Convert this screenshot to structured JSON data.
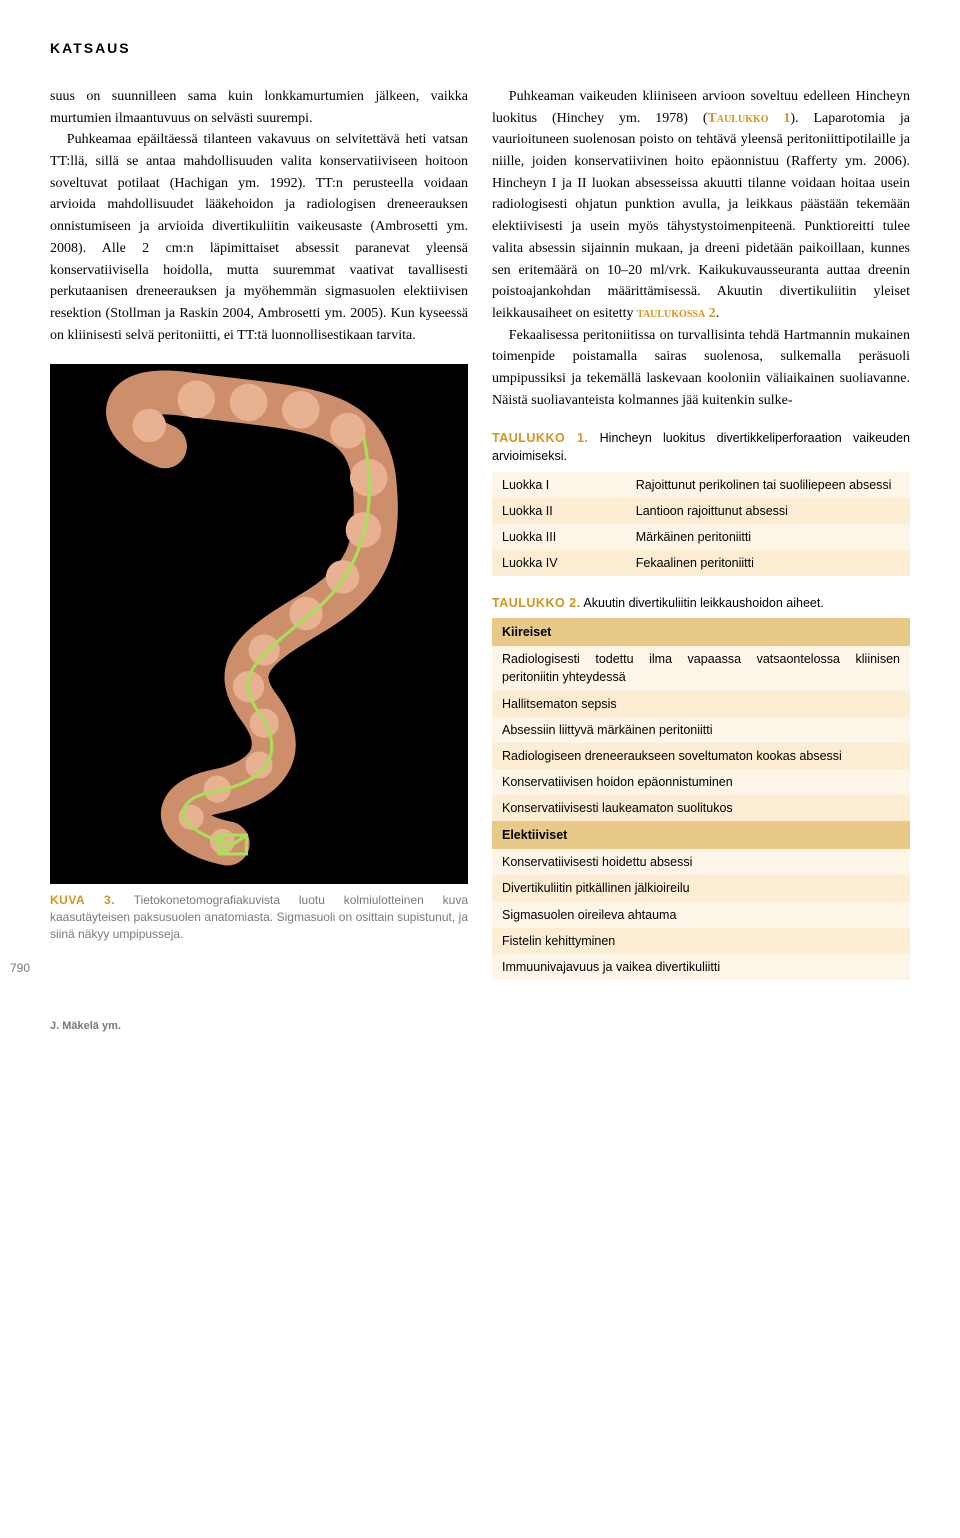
{
  "header": "KATSAUS",
  "left_paragraph": "suus on suunnilleen sama kuin lonkkamurtu­mien jälkeen, vaikka murtumien ilmaantuvuus on selvästi suurempi.",
  "left_paragraph_cont": "Puhkeamaa epäiltäessä tilanteen vakavuus on selvitettävä heti vatsan TT:llä, sillä se antaa mahdollisuuden valita konservatiiviseen hoi­toon soveltuvat potilaat (Hachigan ym. 1992). TT:n perusteella voidaan arvioida mahdolli­suudet lääkehoidon ja radiologisen dreneerauksen onnistumiseen ja arvioida diverti­kuliitin vaikeusaste (Ambrosetti ym. 2008). Alle 2 cm:n läpimittaiset absessit paranevat yleensä konservatiivisella hoidolla, mutta suuremmat vaativat tavallisesti perkutaanisen dreneerauksen ja myöhemmän sigmasuolen elektiivisen resektion (Stollman ja Raskin 2004, Ambrosetti ym. 2005). Kun kyseessä on kliinisesti selvä peritoniitti, ei TT:tä luonnolli­sestikaan tarvita.",
  "right_paragraph_a": "Puhkeaman vaikeuden kliiniseen arvioon soveltuu edelleen Hincheyn luokitus (Hin­chey ym. 1978) (",
  "right_ref_1": "Taulukko 1",
  "right_paragraph_a2": "). Laparotomia ja vaurioituneen suolenosan poisto on tehtävä yleensä peritoniittipotilaille ja niille, joiden konservatiivinen hoito epäonnistuu (Rafferty ym. 2006). Hincheyn I ja II luokan absesseis­sa akuutti tilanne voidaan hoitaa usein radio­logisesti ohjatun punktion avulla, ja leikkaus päästään tekemään elektiivisesti ja usein myös tähystystoimenpiteenä. Punktioreitti tulee valita absessin sijainnin mukaan, ja dreeni pi­detään paikoillaan, kunnes sen eritemäärä on 10–20 ml/vrk. Kaikukuvausseuranta auttaa dreenin poistoajankohdan määrittämisessä. Akuutin divertikuliitin yleiset leikkausaiheet on esitetty ",
  "right_ref_2": "taulukossa 2",
  "right_paragraph_a3": ".",
  "right_paragraph_b": "Fekaalisessa peritoniitissa on turvallisin­ta tehdä Hartmannin mukainen toimenpide poistamalla sairas suolenosa, sulkemalla perä­suoli umpipussiksi ja tekemällä laskevaan kooloniin väliaikainen suoliavanne. Näistä suoliavanteista kolmannes jää kuitenkin sulke-",
  "table1": {
    "caption_label": "TAULUKKO 1.",
    "caption_text": "Hincheyn luokitus divertikkeliperforaation vaikeuden arvioimiseksi.",
    "rows": [
      {
        "c0": "Luokka I",
        "c1": "Rajoittunut perikolinen tai suoli­liepeen absessi"
      },
      {
        "c0": "Luokka II",
        "c1": "Lantioon rajoittunut absessi"
      },
      {
        "c0": "Luokka III",
        "c1": "Märkäinen peritoniitti"
      },
      {
        "c0": "Luokka IV",
        "c1": "Fekaalinen peritoniitti"
      }
    ],
    "row_bg": [
      "bg-a",
      "bg-b",
      "bg-a",
      "bg-b"
    ]
  },
  "table2": {
    "caption_label": "TAULUKKO 2.",
    "caption_text": "Akuutin divertikuliitin leikkaushoidon aiheet.",
    "sections": [
      {
        "header": "Kiireiset",
        "items": [
          "Radiologisesti todettu ilma vapaassa vatsaontelos­sa kliinisen peritoniitin yhteydessä",
          "Hallitsematon sepsis",
          "Absessiin liittyvä märkäinen peritoniitti",
          "Radiologiseen dreneeraukseen soveltumaton koo­kas absessi",
          "Konservatiivisen hoidon epäonnistuminen",
          "Konservatiivisesti laukeamaton suolitukos"
        ],
        "item_bg": [
          "bg-a",
          "bg-b",
          "bg-a",
          "bg-b",
          "bg-a",
          "bg-b"
        ]
      },
      {
        "header": "Elektiiviset",
        "items": [
          "Konservatiivisesti hoidettu absessi",
          "Divertikuliitin pitkällinen jälkioireilu",
          "Sigmasuolen oireileva ahtauma",
          "Fistelin kehittyminen",
          "Immuunivajavuus ja vaikea divertikuliitti"
        ],
        "item_bg": [
          "bg-a",
          "bg-b",
          "bg-a",
          "bg-b",
          "bg-a"
        ]
      }
    ]
  },
  "figure": {
    "label": "KUVA 3.",
    "caption": "Tietokonetomografiakuvista luotu kolmi­ulotteinen kuva kaasutäyteisen paksusuolen ana­tomiasta. Sigmasuoli on osittain supistunut, ja siinä näkyy umpipusseja.",
    "placeholder_colors": {
      "bg": "#000000",
      "colon": "#d89b7a",
      "highlight": "#a8e05a"
    }
  },
  "page_number": "790",
  "author_footer": "J. Mäkelä ym."
}
